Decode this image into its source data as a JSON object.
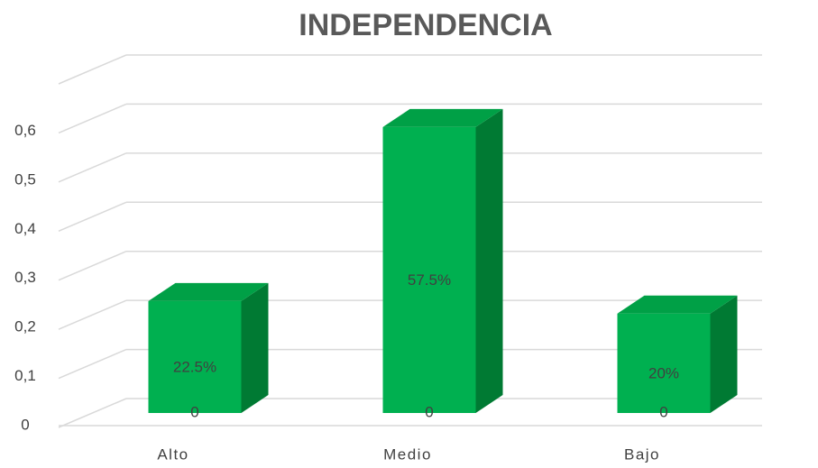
{
  "chart_data": {
    "type": "bar3d",
    "title": "INDEPENDENCIA",
    "categories": [
      "Alto",
      "Medio",
      "Bajo"
    ],
    "series": [
      {
        "color": "#00b050",
        "values": [
          0.225,
          0.575,
          0.2
        ],
        "value_labels": [
          "22.5%",
          "57.5%",
          "20%"
        ]
      },
      {
        "values": [
          0,
          0,
          0
        ]
      }
    ],
    "ylim": [
      0,
      0.7
    ],
    "yticks": [
      0,
      {
        "value": 0.1,
        "label": "0,1"
      },
      {
        "value": 0.2,
        "label": "0,2"
      },
      {
        "value": 0.3,
        "label": "0,3"
      },
      {
        "value": 0.4,
        "label": "0,4"
      },
      {
        "value": 0.5,
        "label": "0,5"
      },
      {
        "value": 0.6,
        "label": "0,6"
      }
    ],
    "grid": true
  }
}
